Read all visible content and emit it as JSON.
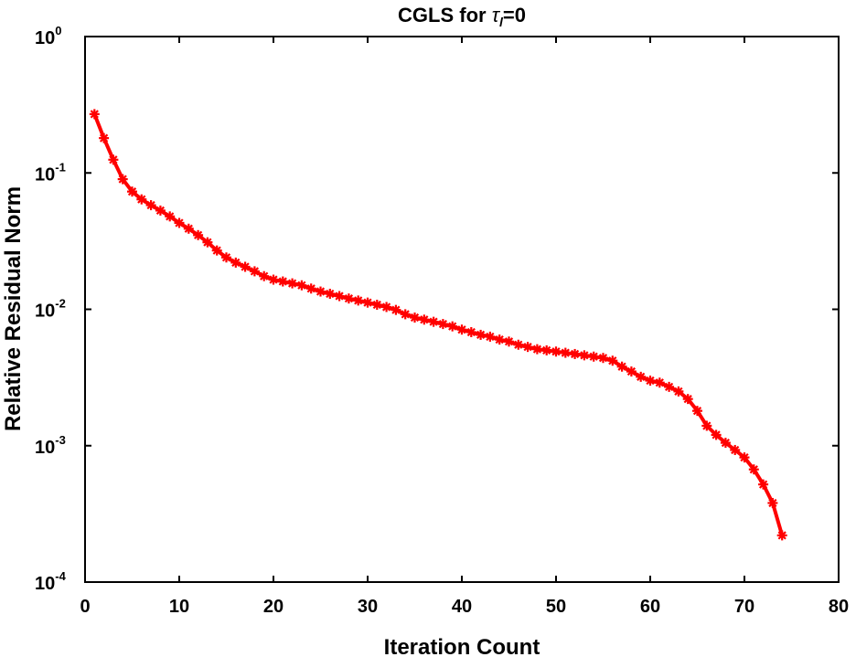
{
  "chart_data": {
    "type": "line",
    "title_main": "CGLS for ",
    "title_symbol": "τ",
    "title_subscript": "l",
    "title_rest": "=0",
    "xlabel": "Iteration Count",
    "ylabel": "Relative Residual Norm",
    "xlim": [
      0,
      80
    ],
    "ylim": [
      0.0001,
      1
    ],
    "yscale": "log",
    "grid": false,
    "x_ticks": [
      "0",
      "10",
      "20",
      "30",
      "40",
      "50",
      "60",
      "70",
      "80"
    ],
    "y_ticks": [
      {
        "base": "10",
        "exp": "0"
      },
      {
        "base": "10",
        "exp": "-1"
      },
      {
        "base": "10",
        "exp": "-2"
      },
      {
        "base": "10",
        "exp": "-3"
      },
      {
        "base": "10",
        "exp": "-4"
      }
    ],
    "series": [
      {
        "color": "#ff0000",
        "marker": "asterisk",
        "x": [
          1,
          2,
          3,
          4,
          5,
          6,
          7,
          8,
          9,
          10,
          11,
          12,
          13,
          14,
          15,
          16,
          17,
          18,
          19,
          20,
          21,
          22,
          23,
          24,
          25,
          26,
          27,
          28,
          29,
          30,
          31,
          32,
          33,
          34,
          35,
          36,
          37,
          38,
          39,
          40,
          41,
          42,
          43,
          44,
          45,
          46,
          47,
          48,
          49,
          50,
          51,
          52,
          53,
          54,
          55,
          56,
          57,
          58,
          59,
          60,
          61,
          62,
          63,
          64,
          65,
          66,
          67,
          68,
          69,
          70,
          71,
          72,
          73,
          74
        ],
        "y": [
          0.27,
          0.18,
          0.125,
          0.09,
          0.073,
          0.064,
          0.058,
          0.053,
          0.048,
          0.043,
          0.039,
          0.035,
          0.031,
          0.027,
          0.024,
          0.022,
          0.0205,
          0.019,
          0.0175,
          0.0165,
          0.016,
          0.0155,
          0.015,
          0.0142,
          0.0135,
          0.013,
          0.0125,
          0.012,
          0.0116,
          0.0112,
          0.0108,
          0.0104,
          0.0099,
          0.0092,
          0.0087,
          0.0084,
          0.0081,
          0.0078,
          0.0075,
          0.0071,
          0.0068,
          0.0065,
          0.0063,
          0.006,
          0.0058,
          0.0055,
          0.0053,
          0.0051,
          0.005,
          0.0049,
          0.0048,
          0.0047,
          0.0046,
          0.0045,
          0.0044,
          0.0042,
          0.0038,
          0.0035,
          0.0032,
          0.003,
          0.0029,
          0.0027,
          0.0025,
          0.0022,
          0.0018,
          0.0014,
          0.0012,
          0.00105,
          0.00093,
          0.00082,
          0.00067,
          0.00052,
          0.00038,
          0.00022
        ]
      }
    ]
  }
}
